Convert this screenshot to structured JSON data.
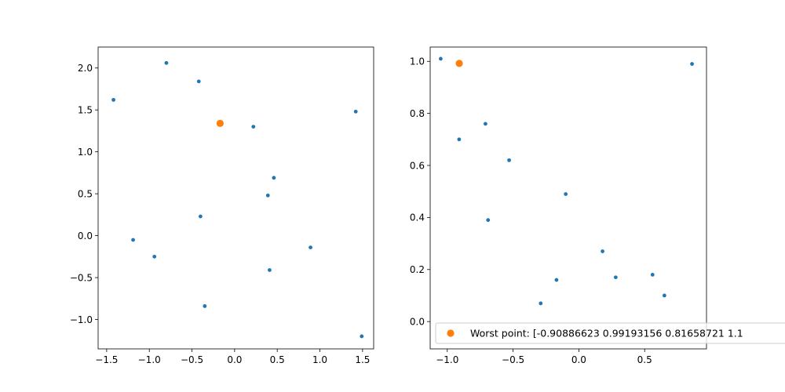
{
  "chart_data": [
    {
      "type": "scatter",
      "title": "",
      "xlabel": "",
      "ylabel": "",
      "xlim": [
        -1.6,
        1.63
      ],
      "ylim": [
        -1.35,
        2.25
      ],
      "x_ticks": [
        -1.5,
        -1.0,
        -0.5,
        0.0,
        0.5,
        1.0,
        1.5
      ],
      "x_tick_labels": [
        "−1.5",
        "−1.0",
        "−0.5",
        "0.0",
        "0.5",
        "1.0",
        "1.5"
      ],
      "y_ticks": [
        -1.0,
        -0.5,
        0.0,
        0.5,
        1.0,
        1.5,
        2.0
      ],
      "y_tick_labels": [
        "−1.0",
        "−0.5",
        "0.0",
        "0.5",
        "1.0",
        "1.5",
        "2.0"
      ],
      "grid": false,
      "series": [
        {
          "role": "points",
          "color": "#1f77b4",
          "x": [
            -1.42,
            -0.8,
            -0.42,
            0.22,
            1.42,
            0.46,
            0.39,
            -0.4,
            -1.19,
            -0.94,
            0.89,
            0.41,
            -0.35,
            1.49
          ],
          "y": [
            1.62,
            2.06,
            1.84,
            1.3,
            1.48,
            0.69,
            0.48,
            0.23,
            -0.05,
            -0.25,
            -0.14,
            -0.41,
            -0.84,
            -1.2
          ]
        },
        {
          "role": "worst",
          "color": "#ff7f0e",
          "x": [
            -0.17
          ],
          "y": [
            1.34
          ]
        }
      ]
    },
    {
      "type": "scatter",
      "title": "",
      "xlabel": "",
      "ylabel": "",
      "xlim": [
        -1.13,
        0.97
      ],
      "ylim": [
        -0.105,
        1.055
      ],
      "x_ticks": [
        -1.0,
        -0.5,
        0.0,
        0.5
      ],
      "x_tick_labels": [
        "−1.0",
        "−0.5",
        "0.0",
        "0.5"
      ],
      "y_ticks": [
        0.0,
        0.2,
        0.4,
        0.6,
        0.8,
        1.0
      ],
      "y_tick_labels": [
        "0.0",
        "0.2",
        "0.4",
        "0.6",
        "0.8",
        "1.0"
      ],
      "grid": false,
      "legend": {
        "placement": "lower-right",
        "entries": [
          {
            "label": "Worst point: [-0.90886623  0.99193156  0.81658721  1.1",
            "color": "#ff7f0e"
          }
        ]
      },
      "series": [
        {
          "role": "points",
          "color": "#1f77b4",
          "x": [
            -1.05,
            0.86,
            -0.71,
            -0.91,
            -0.53,
            -0.1,
            -0.69,
            0.18,
            0.56,
            -0.17,
            0.28,
            0.65,
            -0.29
          ],
          "y": [
            1.01,
            0.99,
            0.76,
            0.7,
            0.62,
            0.49,
            0.39,
            0.27,
            0.18,
            0.16,
            0.17,
            0.1,
            0.07
          ]
        },
        {
          "role": "worst",
          "color": "#ff7f0e",
          "x": [
            -0.909
          ],
          "y": [
            0.992
          ]
        }
      ]
    }
  ]
}
